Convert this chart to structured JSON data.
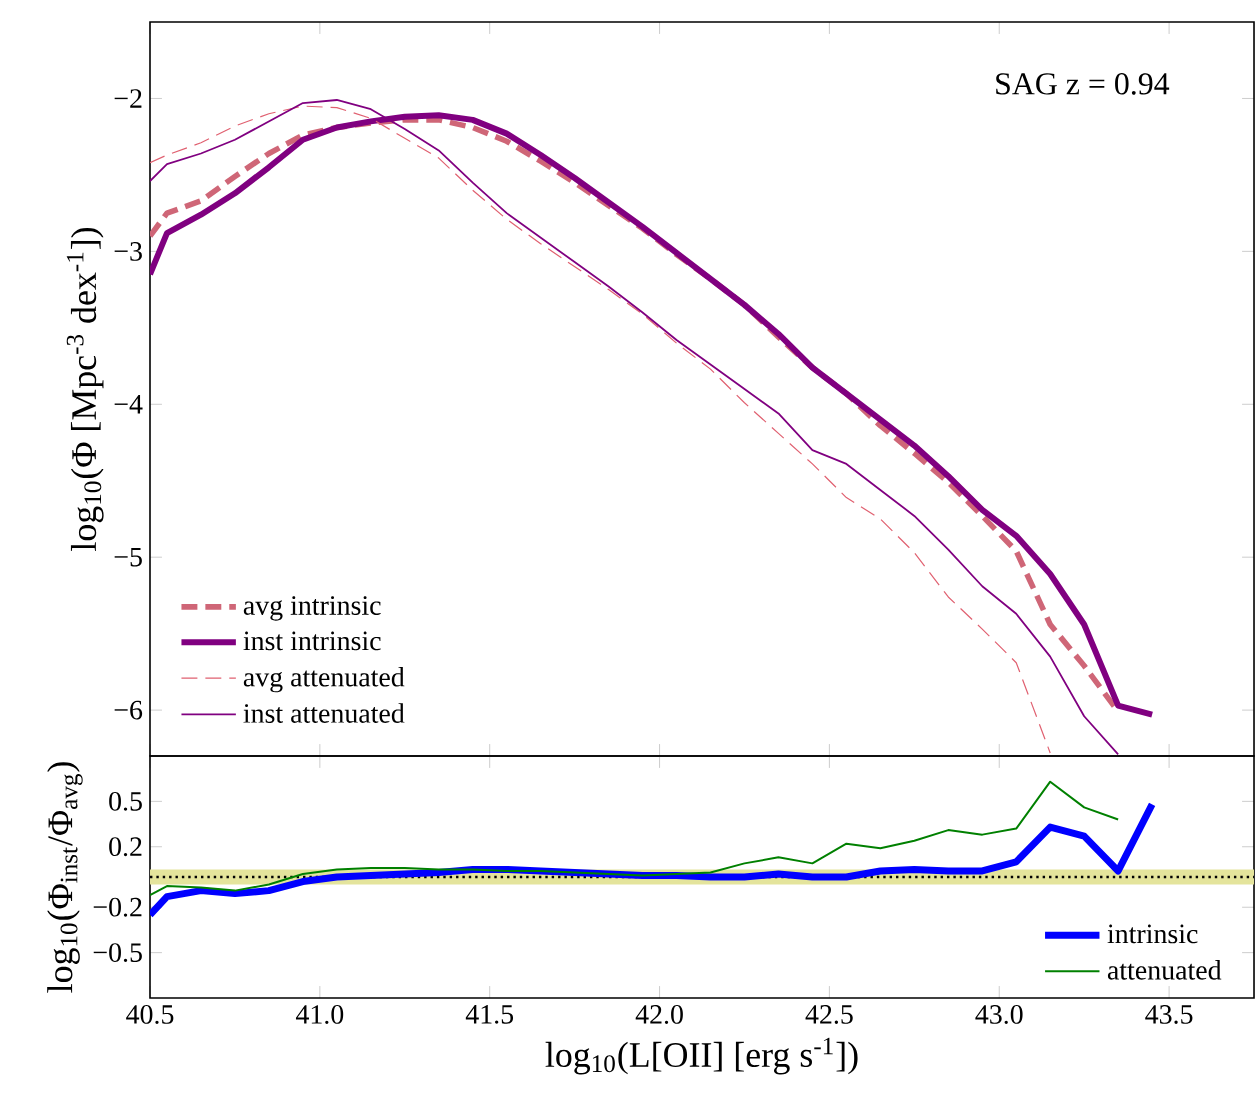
{
  "chart_data": [
    {
      "type": "line",
      "ylabel": "log$_{10}$(Φ [Mpc$^{-3}$ dex$^{-1}$])",
      "annotations": [
        "SAG z = 0.94"
      ],
      "legend": "bottom left",
      "tick_labels": "y",
      "xlim": [
        40.5,
        43.75
      ],
      "ylim": [
        -6.3,
        -1.5
      ],
      "xticks": [
        {
          "value": 40.5,
          "label": null
        },
        {
          "value": 41.0,
          "label": null
        },
        {
          "value": 41.5,
          "label": null
        },
        {
          "value": 42.0,
          "label": null
        },
        {
          "value": 42.5,
          "label": null
        },
        {
          "value": 43.0,
          "label": null
        },
        {
          "value": 43.5,
          "label": null
        }
      ],
      "yticks": [
        {
          "value": -6,
          "label": "−6"
        },
        {
          "value": -5,
          "label": "−5"
        },
        {
          "value": -4,
          "label": "−4"
        },
        {
          "value": -3,
          "label": "−3"
        },
        {
          "value": -2,
          "label": "−2"
        }
      ],
      "x": [
        40.5,
        40.55,
        40.65,
        40.75,
        40.85,
        40.95,
        41.05,
        41.15,
        41.25,
        41.35,
        41.45,
        41.55,
        41.65,
        41.75,
        41.85,
        41.95,
        42.05,
        42.15,
        42.25,
        42.35,
        42.45,
        42.55,
        42.65,
        42.75,
        42.85,
        42.95,
        43.05,
        43.15,
        43.25,
        43.35,
        43.45
      ],
      "series": [
        {
          "name": "avg intrinsic",
          "color": "#cf6677",
          "line_style": "dashed",
          "values": [
            -2.9,
            -2.75,
            -2.67,
            -2.51,
            -2.36,
            -2.24,
            -2.19,
            -2.16,
            -2.14,
            -2.14,
            -2.19,
            -2.28,
            -2.41,
            -2.55,
            -2.7,
            -2.85,
            -3.02,
            -3.18,
            -3.35,
            -3.56,
            -3.76,
            -3.93,
            -4.14,
            -4.32,
            -4.51,
            -4.73,
            -4.96,
            -5.44,
            -5.71,
            -6.01,
            null
          ]
        },
        {
          "name": "inst intrinsic",
          "color": "#800080",
          "line_style": "solid",
          "values": [
            -3.15,
            -2.88,
            -2.76,
            -2.62,
            -2.45,
            -2.27,
            -2.19,
            -2.15,
            -2.12,
            -2.11,
            -2.14,
            -2.23,
            -2.37,
            -2.52,
            -2.68,
            -2.84,
            -3.01,
            -3.18,
            -3.35,
            -3.54,
            -3.76,
            -3.93,
            -4.1,
            -4.27,
            -4.47,
            -4.69,
            -4.86,
            -5.11,
            -5.44,
            -5.97,
            -6.03
          ]
        },
        {
          "name": "avg attenuated",
          "color": "#e06070",
          "line_style": "dashed",
          "values": [
            -2.42,
            -2.37,
            -2.29,
            -2.18,
            -2.1,
            -2.05,
            -2.06,
            -2.13,
            -2.26,
            -2.39,
            -2.6,
            -2.79,
            -2.95,
            -3.1,
            -3.25,
            -3.41,
            -3.6,
            -3.77,
            -3.99,
            -4.19,
            -4.39,
            -4.61,
            -4.75,
            -4.97,
            -5.26,
            -5.47,
            -5.69,
            -6.28,
            null,
            null,
            null
          ]
        },
        {
          "name": "inst attenuated",
          "color": "#800080",
          "line_style": "solid",
          "values": [
            -2.54,
            -2.43,
            -2.36,
            -2.27,
            -2.15,
            -2.03,
            -2.01,
            -2.07,
            -2.2,
            -2.34,
            -2.55,
            -2.75,
            -2.91,
            -3.07,
            -3.23,
            -3.4,
            -3.58,
            -3.74,
            -3.9,
            -4.06,
            -4.3,
            -4.39,
            -4.56,
            -4.73,
            -4.95,
            -5.19,
            -5.37,
            -5.65,
            -6.04,
            -6.29,
            null
          ]
        }
      ]
    },
    {
      "type": "line",
      "ylabel": "log$_{10}$(Φ$_{inst}$/Φ$_{avg}$)",
      "xlabel": "log$_{10}$(L[OII] [erg s$^{-1}$])",
      "legend": "bottom right",
      "xlim": [
        40.5,
        43.75
      ],
      "ylim": [
        -0.8,
        0.8
      ],
      "xticks": [
        {
          "value": 40.5,
          "label": "40.5"
        },
        {
          "value": 41.0,
          "label": "41.0"
        },
        {
          "value": 41.5,
          "label": "41.5"
        },
        {
          "value": 42.0,
          "label": "42.0"
        },
        {
          "value": 42.5,
          "label": "42.5"
        },
        {
          "value": 43.0,
          "label": "43.0"
        },
        {
          "value": 43.5,
          "label": "43.5"
        }
      ],
      "yticks": [
        {
          "value": -0.5,
          "label": "−0.5"
        },
        {
          "value": -0.2,
          "label": "−0.2"
        },
        {
          "value": 0.2,
          "label": "0.2"
        },
        {
          "value": 0.5,
          "label": "0.5"
        }
      ],
      "ref_lines": [
        {
          "axis": "y",
          "value": 0,
          "color": "#000000",
          "line_style": "dotted"
        }
      ],
      "bands": [
        {
          "axis": "y",
          "from": -0.05,
          "to": 0.05,
          "color": "#e4e49c"
        }
      ],
      "x": [
        40.5,
        40.55,
        40.65,
        40.75,
        40.85,
        40.95,
        41.05,
        41.15,
        41.25,
        41.35,
        41.45,
        41.55,
        41.65,
        41.75,
        41.85,
        41.95,
        42.05,
        42.15,
        42.25,
        42.35,
        42.45,
        42.55,
        42.65,
        42.75,
        42.85,
        42.95,
        43.05,
        43.15,
        43.25,
        43.35,
        43.45
      ],
      "series": [
        {
          "name": "intrinsic",
          "color": "#0000ff",
          "line_style": "solid",
          "values": [
            -0.25,
            -0.13,
            -0.09,
            -0.11,
            -0.09,
            -0.03,
            0.0,
            0.01,
            0.02,
            0.03,
            0.05,
            0.05,
            0.04,
            0.03,
            0.02,
            0.01,
            0.01,
            0.0,
            0.0,
            0.02,
            0.0,
            0.0,
            0.04,
            0.05,
            0.04,
            0.04,
            0.1,
            0.33,
            0.27,
            0.04,
            0.48
          ]
        },
        {
          "name": "attenuated",
          "color": "#008000",
          "line_style": "solid",
          "values": [
            -0.12,
            -0.06,
            -0.07,
            -0.09,
            -0.05,
            0.02,
            0.05,
            0.06,
            0.06,
            0.05,
            0.05,
            0.04,
            0.04,
            0.03,
            0.02,
            0.01,
            0.02,
            0.03,
            0.09,
            0.13,
            0.09,
            0.22,
            0.19,
            0.24,
            0.31,
            0.28,
            0.32,
            0.63,
            0.46,
            0.38,
            null
          ]
        }
      ]
    }
  ]
}
